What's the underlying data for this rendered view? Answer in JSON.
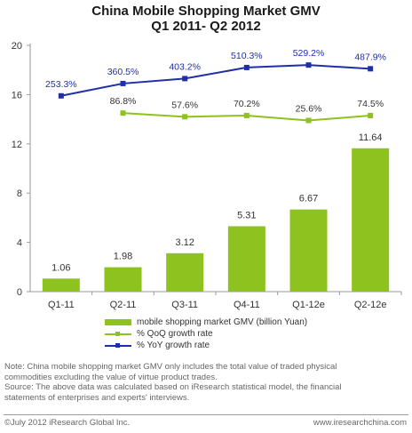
{
  "title_line1": "China Mobile Shopping Market GMV",
  "title_line2": "Q1 2011- Q2 2012",
  "chart_data": {
    "type": "bar",
    "categories": [
      "Q1-11",
      "Q2-11",
      "Q3-11",
      "Q4-11",
      "Q1-12e",
      "Q2-12e"
    ],
    "ylim": [
      0,
      20
    ],
    "yticks": [
      "0",
      "4",
      "8",
      "12",
      "16",
      "20"
    ],
    "grid": false,
    "bar_series": {
      "name": "mobile shopping market GMV (billion Yuan)",
      "values": [
        1.06,
        1.98,
        3.12,
        5.31,
        6.67,
        11.64
      ],
      "labels": [
        "1.06",
        "1.98",
        "3.12",
        "5.31",
        "6.67",
        "11.64"
      ],
      "color": "#8dc21f"
    },
    "line_series": [
      {
        "name": "% QoQ growth rate",
        "color": "#8dc21f",
        "values": [
          null,
          14.5,
          14.2,
          14.3,
          13.9,
          14.3
        ],
        "labels": [
          null,
          "86.8%",
          "57.6%",
          "70.2%",
          "25.6%",
          "74.5%"
        ]
      },
      {
        "name": "% YoY growth rate",
        "color": "#1f2fa8",
        "values": [
          15.9,
          16.9,
          17.3,
          18.2,
          18.4,
          18.1
        ],
        "labels": [
          "253.3%",
          "360.5%",
          "403.2%",
          "510.3%",
          "529.2%",
          "487.9%"
        ]
      }
    ]
  },
  "legend": {
    "bar": "mobile shopping market GMV (billion Yuan)",
    "qoq": "% QoQ growth rate",
    "yoy": "% YoY growth rate"
  },
  "note_line1": "Note: China mobile shopping market GMV only includes the total value of traded physical",
  "note_line2": "commodities  excluding the value of virtue product trades.",
  "source_line1": "Source: The above data was calculated based on iResearch statistical model, the financial",
  "source_line2": "statements of enterprises and experts' interviews.",
  "copyright": "©July 2012 iResearch Global Inc.",
  "website": "www.iresearchchina.com"
}
